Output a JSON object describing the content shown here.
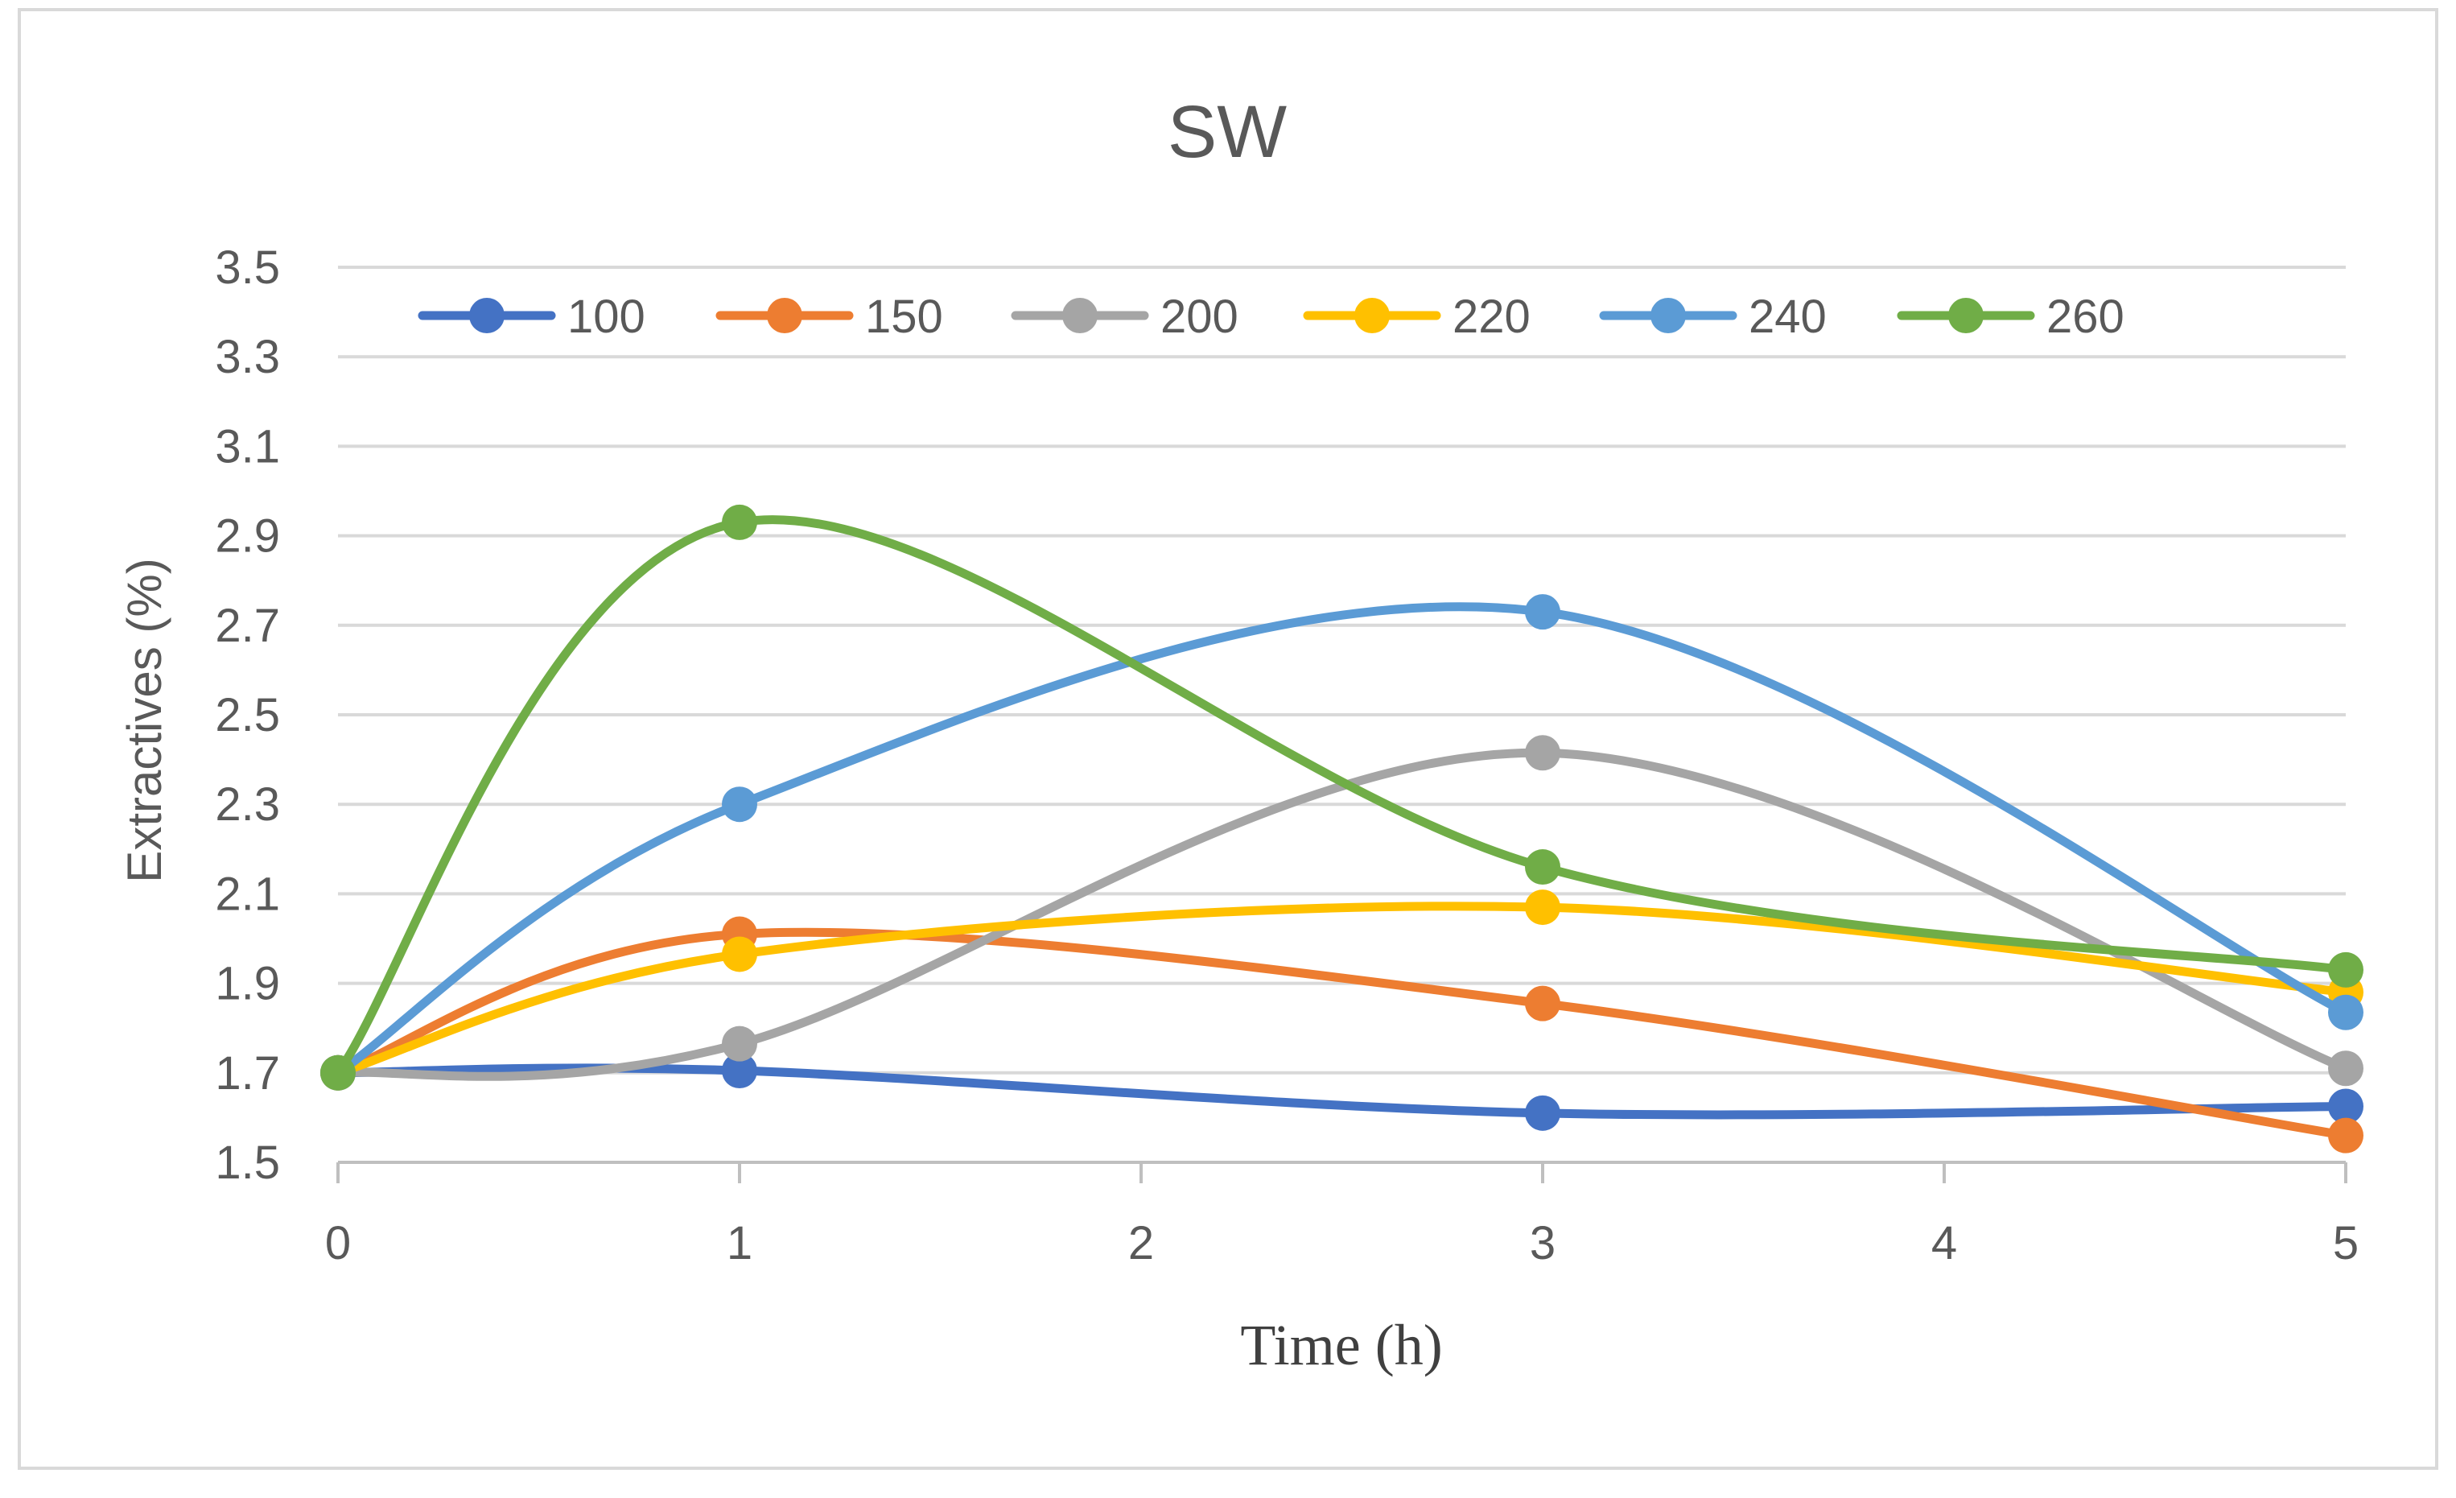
{
  "chart_data": {
    "type": "line",
    "title": "SW",
    "xlabel": "Time (h)",
    "ylabel": "Extractives (%)",
    "x": [
      0,
      1,
      3,
      5
    ],
    "xlim": [
      0,
      5
    ],
    "xticks": [
      "0",
      "1",
      "2",
      "3",
      "4",
      "5"
    ],
    "ylim": [
      1.5,
      3.5
    ],
    "yticks": [
      "1.5",
      "1.7",
      "1.9",
      "2.1",
      "2.3",
      "2.5",
      "2.7",
      "2.9",
      "3.1",
      "3.3",
      "3.5"
    ],
    "grid": true,
    "smooth": true,
    "legend_position": "top",
    "series": [
      {
        "name": "100",
        "color": "#4472C4",
        "values": [
          1.7,
          1.705,
          1.61,
          1.625
        ]
      },
      {
        "name": "150",
        "color": "#ED7D31",
        "values": [
          1.7,
          2.01,
          1.855,
          1.56
        ]
      },
      {
        "name": "200",
        "color": "#A5A5A5",
        "values": [
          1.7,
          1.765,
          2.415,
          1.71
        ]
      },
      {
        "name": "220",
        "color": "#FFC000",
        "values": [
          1.7,
          1.965,
          2.07,
          1.88
        ]
      },
      {
        "name": "240",
        "color": "#5B9BD5",
        "values": [
          1.7,
          2.3,
          2.73,
          1.835
        ]
      },
      {
        "name": "260",
        "color": "#70AD47",
        "values": [
          1.7,
          2.93,
          2.16,
          1.93
        ]
      }
    ]
  }
}
